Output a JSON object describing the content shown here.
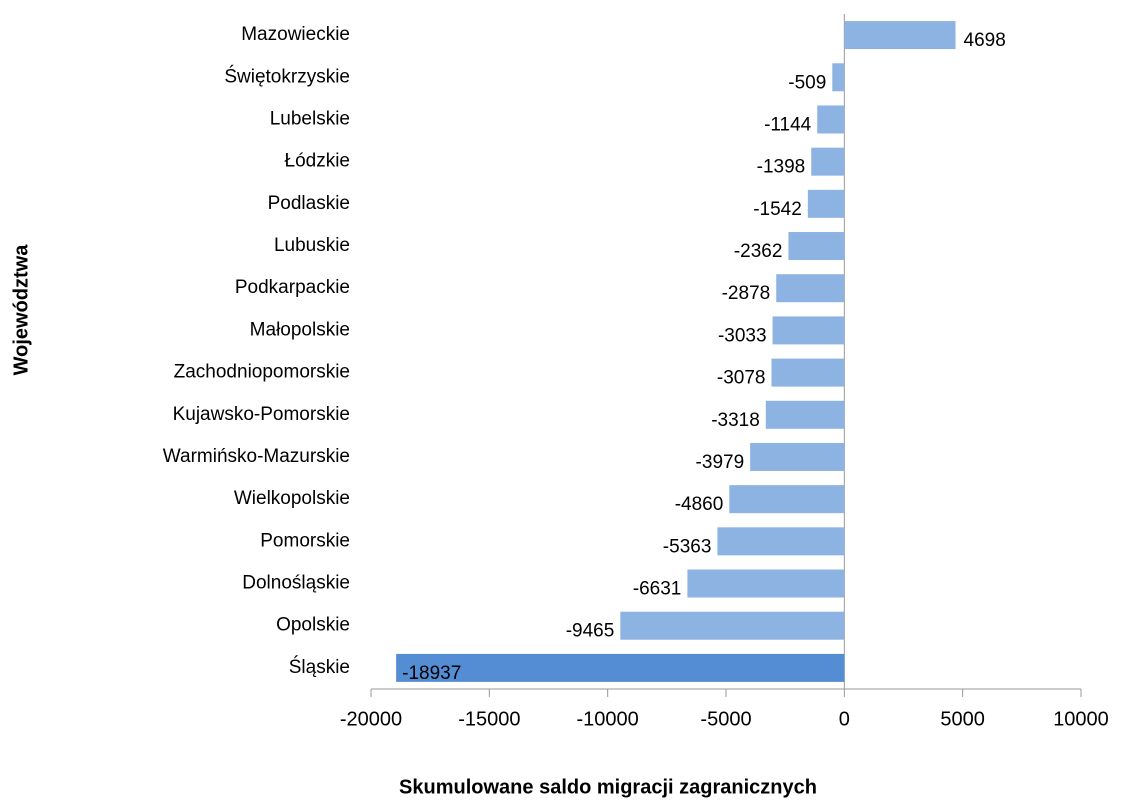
{
  "chart_data": {
    "type": "bar",
    "orientation": "horizontal",
    "x_label": "Skumulowane saldo migracji zagranicznych",
    "y_label": "Województwa",
    "categories": [
      "Mazowieckie",
      "Świętokrzyskie",
      "Lubelskie",
      "Łódzkie",
      "Podlaskie",
      "Lubuskie",
      "Podkarpackie",
      "Małopolskie",
      "Zachodniopomorskie",
      "Kujawsko-Pomorskie",
      "Warmińsko-Mazurskie",
      "Wielkopolskie",
      "Pomorskie",
      "Dolnośląskie",
      "Opolskie",
      "Śląskie"
    ],
    "values": [
      4698,
      -509,
      -1144,
      -1398,
      -1542,
      -2362,
      -2878,
      -3033,
      -3078,
      -3318,
      -3979,
      -4860,
      -5363,
      -6631,
      -9465,
      -18937
    ],
    "colors": [
      "#8db3e2",
      "#8db3e2",
      "#8db3e2",
      "#8db3e2",
      "#8db3e2",
      "#8db3e2",
      "#8db3e2",
      "#8db3e2",
      "#8db3e2",
      "#8db3e2",
      "#8db3e2",
      "#8db3e2",
      "#8db3e2",
      "#8db3e2",
      "#8db3e2",
      "#548dd4"
    ],
    "xlim": [
      -20000,
      10000
    ],
    "xticks": [
      -20000,
      -15000,
      -10000,
      -5000,
      0,
      5000,
      10000
    ],
    "grid": false
  }
}
